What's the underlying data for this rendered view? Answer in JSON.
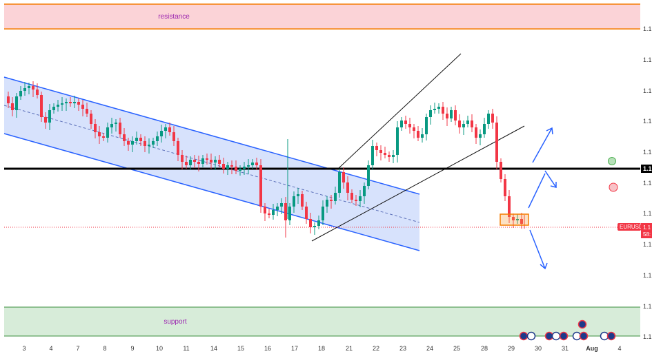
{
  "chart_data": {
    "type": "candlestick",
    "symbol": "EURUSD",
    "price_tag_lines": [
      "1.1",
      "58:"
    ],
    "x_ticks": [
      "3",
      "4",
      "7",
      "8",
      "9",
      "10",
      "11",
      "14",
      "15",
      "16",
      "17",
      "18",
      "21",
      "22",
      "23",
      "24",
      "25",
      "28",
      "29",
      "30",
      "31",
      "Aug",
      "4"
    ],
    "y_ticks": [
      "1.1",
      "1.1",
      "1.1",
      "1.1",
      "1.1",
      "1.1",
      "1.1",
      "1.1",
      "1.1",
      "1.1",
      "1.1",
      "1.1"
    ],
    "level_label": "1.1",
    "zones": {
      "resistance": {
        "label": "resistance",
        "color": "#f23645",
        "fill": "#fbd3d7"
      },
      "support": {
        "label": "support",
        "color": "#4caf50",
        "fill": "#d7ecd9"
      }
    },
    "colors": {
      "up": "#089981",
      "down": "#f23645",
      "channel": "#2962ff",
      "channel_fill": "#c9d8fb",
      "arrow": "#2962ff",
      "level": "#000000",
      "box": "#f59d3a"
    },
    "events_count": 12
  }
}
